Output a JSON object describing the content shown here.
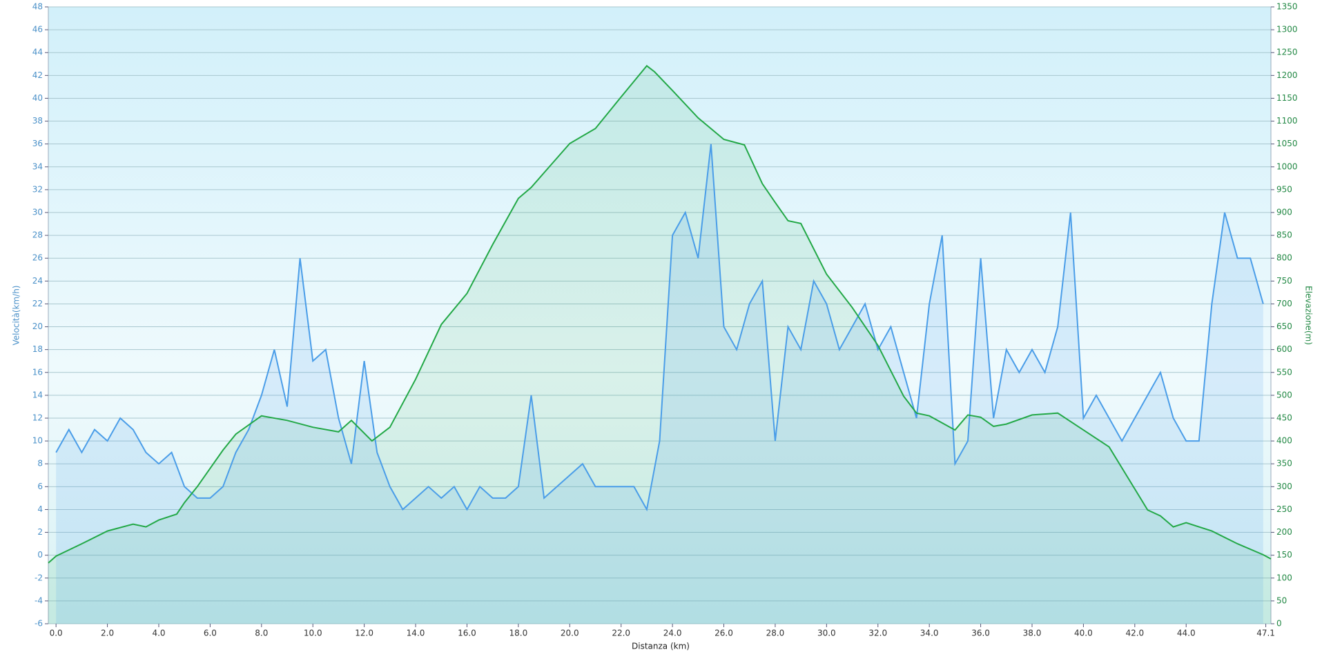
{
  "chart_data": {
    "type": "line",
    "xlabel": "Distanza  (km)",
    "ylabel": "Velocità(km/h)",
    "y2label": "Elevazione(m)",
    "xlim": [
      -0.3,
      47.3
    ],
    "ylim": [
      -6,
      48
    ],
    "y2lim": [
      0,
      1350
    ],
    "xticks": [
      {
        "value": 0,
        "label": "0.0"
      },
      {
        "value": 2,
        "label": "2.0"
      },
      {
        "value": 4,
        "label": "4.0"
      },
      {
        "value": 6,
        "label": "6.0"
      },
      {
        "value": 8,
        "label": "8.0"
      },
      {
        "value": 10,
        "label": "10.0"
      },
      {
        "value": 12,
        "label": "12.0"
      },
      {
        "value": 14,
        "label": "14.0"
      },
      {
        "value": 16,
        "label": "16.0"
      },
      {
        "value": 18,
        "label": "18.0"
      },
      {
        "value": 20,
        "label": "20.0"
      },
      {
        "value": 22,
        "label": "22.0"
      },
      {
        "value": 24,
        "label": "24.0"
      },
      {
        "value": 26,
        "label": "26.0"
      },
      {
        "value": 28,
        "label": "28.0"
      },
      {
        "value": 30,
        "label": "30.0"
      },
      {
        "value": 32,
        "label": "32.0"
      },
      {
        "value": 34,
        "label": "34.0"
      },
      {
        "value": 36,
        "label": "36.0"
      },
      {
        "value": 38,
        "label": "38.0"
      },
      {
        "value": 40,
        "label": "40.0"
      },
      {
        "value": 42,
        "label": "42.0"
      },
      {
        "value": 44,
        "label": "44.0"
      },
      47.1
    ],
    "yticks": [
      -6,
      -4,
      -2,
      0,
      2,
      4,
      6,
      8,
      10,
      12,
      14,
      16,
      18,
      20,
      22,
      24,
      26,
      28,
      30,
      32,
      34,
      36,
      38,
      40,
      42,
      44,
      46,
      48
    ],
    "y2ticks": [
      0,
      50,
      100,
      150,
      200,
      250,
      300,
      350,
      400,
      450,
      500,
      550,
      600,
      650,
      700,
      750,
      800,
      850,
      900,
      950,
      1000,
      1050,
      1100,
      1150,
      1200,
      1250,
      1300,
      1350
    ],
    "grid": true,
    "series": [
      {
        "color": "#4a9de8",
        "axis": "y",
        "x": [
          0,
          0.5,
          1,
          1.5,
          2,
          2.5,
          3,
          3.5,
          4,
          4.5,
          5,
          5.5,
          6,
          6.5,
          7,
          7.5,
          8,
          8.5,
          9,
          9.5,
          10,
          10.5,
          11,
          11.5,
          12,
          12.5,
          13,
          13.5,
          14,
          14.5,
          15,
          15.5,
          16,
          16.5,
          17,
          17.5,
          18,
          18.5,
          19,
          19.5,
          20,
          20.5,
          21,
          21.5,
          22,
          22.5,
          23,
          23.5,
          24,
          24.5,
          25,
          25.5,
          26,
          26.5,
          27,
          27.5,
          28,
          28.5,
          29,
          29.5,
          30,
          30.5,
          31,
          31.5,
          32,
          32.5,
          33,
          33.5,
          34,
          34.5,
          35,
          35.5,
          36,
          36.5,
          37,
          37.5,
          38,
          38.5,
          39,
          39.5,
          40,
          40.5,
          41,
          41.5,
          42,
          42.5,
          43,
          43.5,
          44,
          44.5,
          45,
          45.5,
          46,
          46.5,
          47
        ],
        "values": [
          9,
          11,
          9,
          11,
          10,
          12,
          11,
          9,
          8,
          9,
          6,
          5,
          5,
          6,
          9,
          11,
          14,
          18,
          13,
          26,
          17,
          18,
          12,
          8,
          17,
          9,
          6,
          4,
          5,
          6,
          5,
          6,
          4,
          6,
          5,
          5,
          6,
          14,
          5,
          6,
          7,
          8,
          6,
          6,
          6,
          6,
          4,
          10,
          28,
          30,
          26,
          36,
          20,
          18,
          22,
          24,
          10,
          20,
          18,
          24,
          22,
          18,
          20,
          22,
          18,
          20,
          16,
          12,
          22,
          28,
          8,
          10,
          26,
          12,
          18,
          16,
          18,
          16,
          20,
          30,
          12,
          14,
          12,
          10,
          12,
          14,
          16,
          12,
          10,
          10,
          22,
          30,
          26,
          26,
          22
        ]
      },
      {
        "color": "#22a846",
        "axis": "y2",
        "x": [
          -0.3,
          0,
          1,
          2,
          3,
          3.5,
          4,
          4.7,
          5,
          5.5,
          6,
          6.5,
          7,
          8,
          9,
          10,
          11,
          11.5,
          12.3,
          13,
          14,
          15,
          16,
          17,
          18,
          18.5,
          19,
          20,
          21,
          22,
          23,
          23.3,
          24,
          25,
          26,
          26.8,
          27.5,
          28,
          28.5,
          29,
          30,
          31,
          32,
          33,
          33.5,
          34,
          35,
          35.5,
          36,
          36.5,
          37,
          38,
          39,
          40,
          41,
          42,
          42.5,
          43,
          43.5,
          44,
          45,
          46,
          47,
          47.3
        ],
        "values": [
          133,
          148,
          175,
          203,
          218,
          212,
          227,
          240,
          265,
          300,
          340,
          380,
          415,
          455,
          445,
          430,
          420,
          445,
          400,
          430,
          535,
          655,
          723,
          830,
          931,
          955,
          987,
          1051,
          1084,
          1153,
          1221,
          1208,
          1167,
          1107,
          1060,
          1048,
          963,
          922,
          882,
          876,
          765,
          692,
          609,
          498,
          461,
          455,
          424,
          457,
          452,
          432,
          437,
          457,
          461,
          424,
          387,
          295,
          249,
          236,
          212,
          221,
          203,
          175,
          151,
          142
        ]
      }
    ]
  }
}
